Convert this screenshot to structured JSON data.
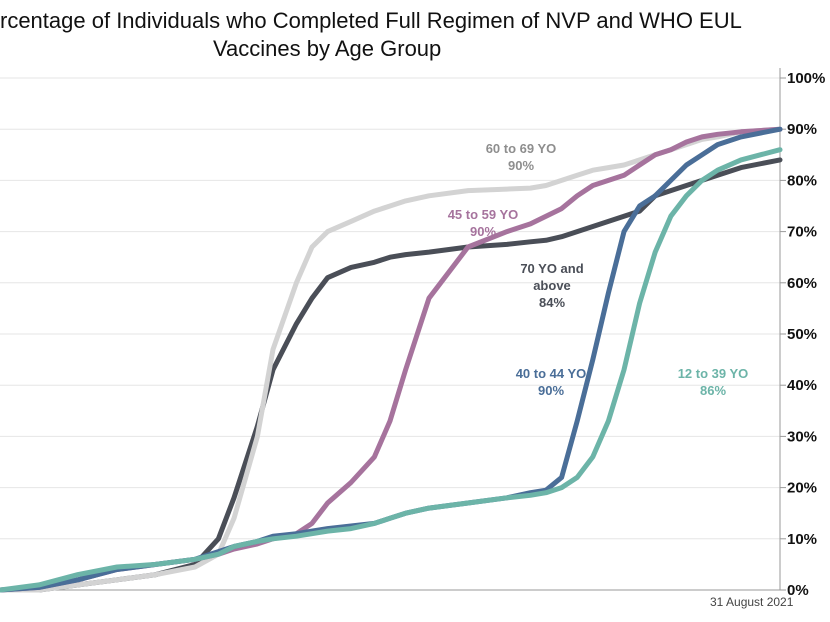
{
  "chart_data": {
    "type": "line",
    "title": [
      "rcentage of Individuals who Completed Full Regimen of NVP and WHO EUL",
      "Vaccines by Age Group"
    ],
    "date_label": "31 August 2021",
    "ylim": [
      0,
      100
    ],
    "yticks": [
      "0%",
      "10%",
      "20%",
      "30%",
      "40%",
      "50%",
      "60%",
      "70%",
      "80%",
      "90%",
      "100%"
    ],
    "grid": true,
    "x": [
      0,
      0.05,
      0.1,
      0.15,
      0.2,
      0.25,
      0.28,
      0.3,
      0.33,
      0.35,
      0.38,
      0.4,
      0.42,
      0.45,
      0.48,
      0.5,
      0.52,
      0.55,
      0.6,
      0.65,
      0.68,
      0.7,
      0.72,
      0.74,
      0.76,
      0.78,
      0.8,
      0.82,
      0.84,
      0.86,
      0.88,
      0.9,
      0.92,
      0.95,
      1.0
    ],
    "series": [
      {
        "name": "70 YO and above",
        "label": [
          "70 YO and",
          "above",
          "84%"
        ],
        "color": "#4a4e57",
        "values": [
          0,
          0,
          1,
          2,
          3,
          5,
          10,
          18,
          32,
          43,
          52,
          57,
          61,
          63,
          64,
          65,
          65.5,
          66,
          67,
          67.5,
          68,
          68.3,
          69,
          70,
          71,
          72,
          73,
          74,
          77,
          78,
          79,
          80,
          81,
          82.5,
          84
        ]
      },
      {
        "name": "60 to 69 YO",
        "label": [
          "60 to 69 YO",
          "90%"
        ],
        "color": "#d3d3d3",
        "values": [
          0,
          0,
          1,
          2,
          3,
          4.5,
          7,
          14,
          30,
          47,
          60,
          67,
          70,
          72,
          74,
          75,
          76,
          77,
          78,
          78.3,
          78.5,
          79,
          80,
          81,
          82,
          82.5,
          83,
          84,
          85,
          86,
          87,
          88,
          88.5,
          89.5,
          90
        ]
      },
      {
        "name": "45 to 59 YO",
        "label": [
          "45 to 59 YO",
          "90%"
        ],
        "color": "#a6739d",
        "values": [
          0,
          0.5,
          2,
          4,
          5,
          6,
          7,
          8,
          9,
          10,
          11,
          13,
          17,
          21,
          26,
          33,
          43,
          57,
          67,
          70,
          71.5,
          73,
          74.5,
          77,
          79,
          80,
          81,
          83,
          85,
          86,
          87.5,
          88.5,
          89,
          89.5,
          90
        ]
      },
      {
        "name": "40 to 44 YO",
        "label": [
          "40 to 44 YO",
          "90%"
        ],
        "color": "#4a6e98",
        "values": [
          0,
          0.5,
          2,
          4,
          5,
          6,
          7.5,
          8.5,
          9.5,
          10.5,
          11,
          11.5,
          12,
          12.5,
          13,
          14,
          15,
          16,
          17,
          18,
          19,
          19.5,
          22,
          33,
          45,
          58,
          70,
          75,
          77,
          80,
          83,
          85,
          87,
          88.5,
          90
        ]
      },
      {
        "name": "12 to 39 YO",
        "label": [
          "12 to 39 YO",
          "86%"
        ],
        "color": "#6cb4a8",
        "values": [
          0,
          1,
          3,
          4.5,
          5,
          6,
          7,
          8.5,
          9.5,
          10,
          10.5,
          11,
          11.5,
          12,
          13,
          14,
          15,
          16,
          17,
          18,
          18.5,
          19,
          20,
          22,
          26,
          33,
          43,
          56,
          66,
          73,
          77,
          80,
          82,
          84,
          86
        ]
      }
    ]
  }
}
